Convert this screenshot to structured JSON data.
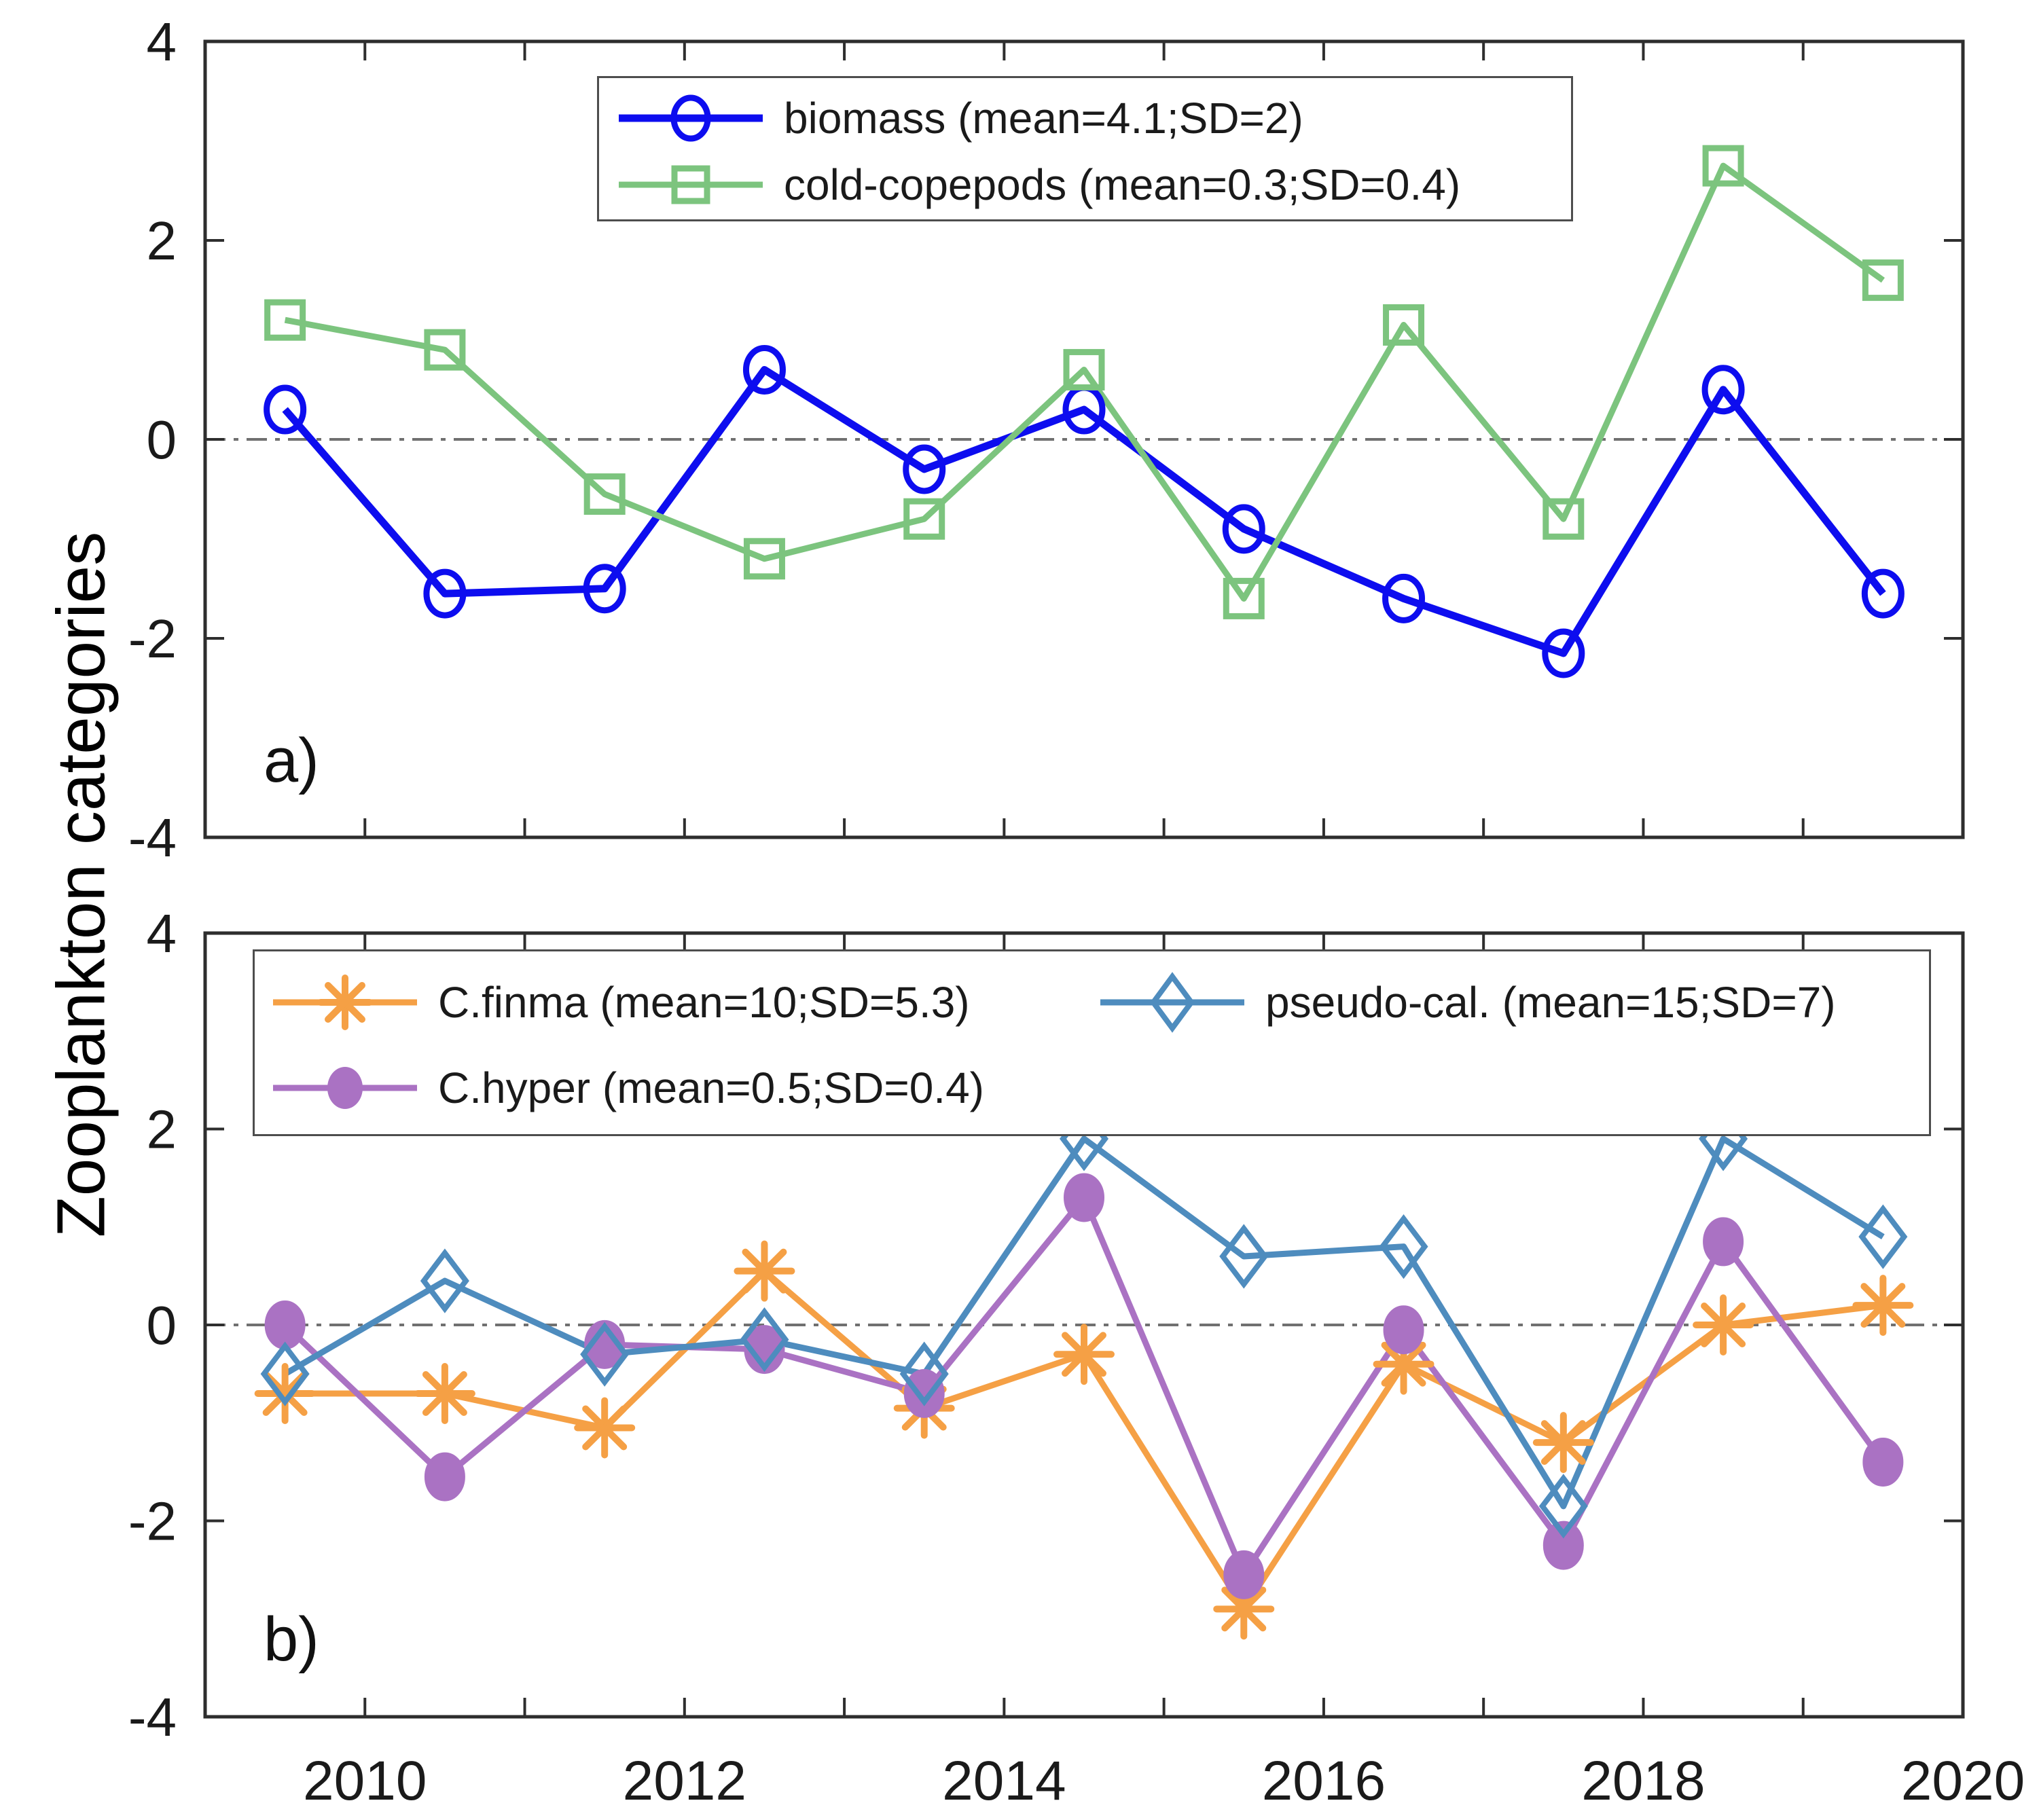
{
  "figure": {
    "ylabel": "Zooplankton categories",
    "background": "#ffffff"
  },
  "axes": {
    "x_label_years": [
      2010,
      2012,
      2014,
      2016,
      2018,
      2020
    ],
    "x_tick_labels": [
      "2010",
      "2012",
      "2014",
      "2016",
      "2018",
      "2020"
    ],
    "x_minor_tick_years": [
      2010,
      2011,
      2012,
      2013,
      2014,
      2015,
      2016,
      2017,
      2018,
      2019
    ],
    "y_tick_values": [
      4,
      2,
      0,
      -2,
      -4
    ],
    "y_tick_labels": [
      "4",
      "2",
      "0",
      "-2",
      "-4"
    ],
    "xlim": [
      2009,
      2020
    ],
    "ylim": [
      -4,
      4
    ]
  },
  "colors": {
    "axis": "#2e2e2e",
    "tick_text": "#1a1a1a",
    "zero_line": "#707070",
    "legend_border": "#4d4d4d",
    "biomass_blue": "#0d0def",
    "copepod_green": "#7cc47e",
    "finma_orange": "#f5a045",
    "hyper_purple": "#aa72c3",
    "pseudo_steelblue": "#4e8cbe"
  },
  "chart_data": [
    {
      "type": "line",
      "panel_label": "a)",
      "title": "",
      "xlabel": "",
      "ylabel": "Zooplankton categories",
      "xlim": [
        2009,
        2020
      ],
      "ylim": [
        -4,
        4
      ],
      "zero_line": true,
      "grid": false,
      "legend_position": "top-center-framed",
      "x": [
        2009.5,
        2010.5,
        2011.5,
        2012.5,
        2013.5,
        2014.5,
        2015.5,
        2016.5,
        2017.5,
        2018.5,
        2019.5
      ],
      "series": [
        {
          "name": "biomass",
          "legend_label": "biomass (mean=4.1;SD=2)",
          "marker": "open-circle",
          "color": "#0d0def",
          "line_width": 11,
          "values": [
            0.3,
            -1.55,
            -1.5,
            0.7,
            -0.3,
            0.3,
            -0.9,
            -1.6,
            -2.15,
            0.5,
            -1.55
          ]
        },
        {
          "name": "cold-copepods",
          "legend_label": "cold-copepods (mean=0.3;SD=0.4)",
          "marker": "open-square",
          "color": "#7cc47e",
          "line_width": 9,
          "values": [
            1.2,
            0.9,
            -0.55,
            -1.2,
            -0.8,
            0.7,
            -1.6,
            1.15,
            -0.8,
            2.75,
            1.6
          ]
        }
      ]
    },
    {
      "type": "line",
      "panel_label": "b)",
      "title": "",
      "xlabel": "",
      "ylabel": "Zooplankton categories",
      "xlim": [
        2009,
        2020
      ],
      "ylim": [
        -4,
        4
      ],
      "zero_line": true,
      "grid": false,
      "legend_position": "top-left-framed",
      "x": [
        2009.5,
        2010.5,
        2011.5,
        2012.5,
        2013.5,
        2014.5,
        2015.5,
        2016.5,
        2017.5,
        2018.5,
        2019.5
      ],
      "series": [
        {
          "name": "C.finma",
          "legend_label": "C.finma (mean=10;SD=5.3)",
          "marker": "asterisk",
          "color": "#f5a045",
          "line_width": 9,
          "values": [
            -0.7,
            -0.7,
            -1.05,
            0.55,
            -0.85,
            -0.3,
            -2.9,
            -0.4,
            -1.2,
            0.0,
            0.2
          ]
        },
        {
          "name": "C.hyper",
          "legend_label": "C.hyper (mean=0.5;SD=0.4)",
          "marker": "filled-circle",
          "color": "#aa72c3",
          "line_width": 9,
          "values": [
            0.0,
            -1.55,
            -0.2,
            -0.25,
            -0.7,
            1.3,
            -2.55,
            -0.05,
            -2.25,
            0.85,
            -1.4
          ]
        },
        {
          "name": "pseudo-cal.",
          "legend_label": "pseudo-cal. (mean=15;SD=7)",
          "marker": "open-diamond",
          "color": "#4e8cbe",
          "line_width": 9,
          "values": [
            -0.5,
            0.45,
            -0.3,
            -0.15,
            -0.5,
            1.9,
            0.7,
            0.8,
            -1.85,
            1.9,
            0.9
          ]
        }
      ]
    }
  ]
}
